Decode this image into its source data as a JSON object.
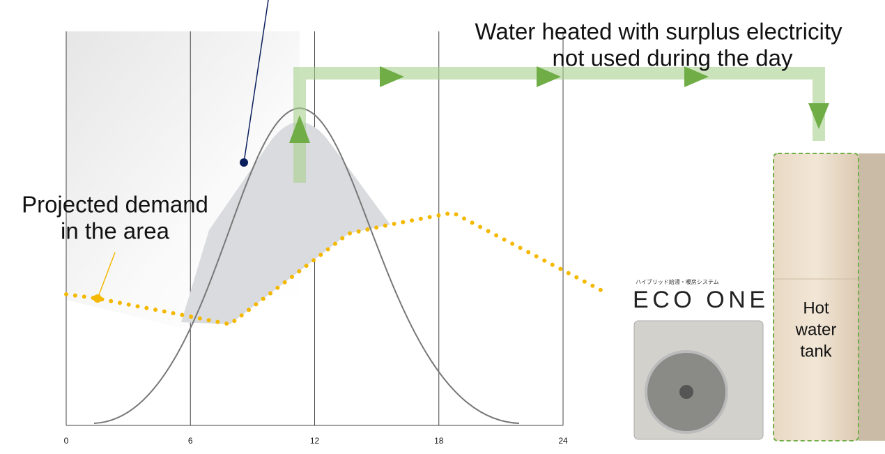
{
  "annotations": {
    "surplus": [
      "Water heated with surplus electricity",
      "not used during the day"
    ],
    "demand": [
      "Projected demand",
      "in the area"
    ],
    "tank": [
      "Hot",
      "water",
      "tank"
    ]
  },
  "product": {
    "subtitle": "ハイブリッド給湯・暖房システム",
    "logo": "ECO ONE"
  },
  "x_axis": {
    "ticks": [
      0,
      6,
      12,
      18,
      24
    ]
  }
}
